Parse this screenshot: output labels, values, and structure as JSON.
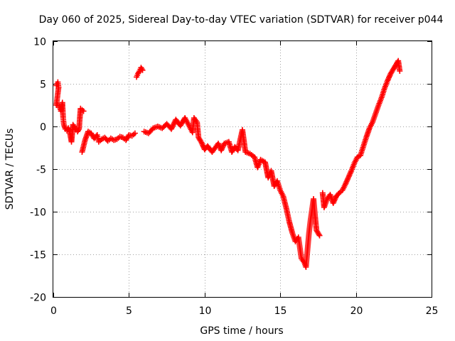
{
  "chart_data": {
    "type": "scatter",
    "title": "Day 060 of 2025, Sidereal Day-to-day VTEC variation (SDTVAR) for receiver p044",
    "xlabel": "GPS time / hours",
    "ylabel": "SDTVAR / TECUs",
    "xlim": [
      0,
      25
    ],
    "ylim": [
      -20,
      10
    ],
    "xticks": [
      0,
      5,
      10,
      15,
      20,
      25
    ],
    "yticks": [
      -20,
      -15,
      -10,
      -5,
      0,
      5,
      10
    ],
    "grid": true,
    "marker": "plus",
    "colors": {
      "series": "#ff0000",
      "axes": "#000000",
      "grid": "#a0a0a0"
    },
    "series": [
      {
        "values": [
          [
            0.2,
            4.8
          ],
          [
            0.3,
            5.2
          ],
          [
            0.35,
            4.6
          ],
          [
            0.2,
            2.5
          ],
          [
            0.4,
            2.4
          ],
          [
            0.5,
            1.8
          ],
          [
            0.6,
            2.8
          ],
          [
            0.65,
            1.0
          ],
          [
            0.7,
            0.2
          ],
          [
            0.8,
            -0.3
          ],
          [
            0.9,
            -0.5
          ],
          [
            1.0,
            -0.2
          ],
          [
            1.1,
            -0.8
          ],
          [
            1.2,
            -1.8
          ],
          [
            1.3,
            0.2
          ],
          [
            1.5,
            -0.4
          ],
          [
            1.6,
            -0.6
          ],
          [
            1.7,
            -0.3
          ],
          [
            1.8,
            2.1
          ],
          [
            2.0,
            1.8
          ],
          [
            1.9,
            -3.0
          ],
          [
            2.1,
            -1.6
          ],
          [
            2.3,
            -0.6
          ],
          [
            2.5,
            -0.8
          ],
          [
            2.7,
            -1.4
          ],
          [
            2.9,
            -1.0
          ],
          [
            3.0,
            -1.8
          ],
          [
            3.2,
            -1.5
          ],
          [
            3.4,
            -1.3
          ],
          [
            3.6,
            -1.7
          ],
          [
            3.8,
            -1.4
          ],
          [
            4.0,
            -1.6
          ],
          [
            4.2,
            -1.5
          ],
          [
            4.4,
            -1.2
          ],
          [
            4.6,
            -1.3
          ],
          [
            4.8,
            -1.6
          ],
          [
            5.0,
            -1.0
          ],
          [
            5.2,
            -1.1
          ],
          [
            5.4,
            -0.8
          ],
          [
            5.5,
            5.8
          ],
          [
            5.6,
            6.2
          ],
          [
            5.7,
            6.5
          ],
          [
            5.8,
            6.9
          ],
          [
            5.9,
            6.6
          ],
          [
            6.0,
            -0.6
          ],
          [
            6.3,
            -0.8
          ],
          [
            6.6,
            -0.2
          ],
          [
            6.9,
            0.0
          ],
          [
            7.2,
            -0.2
          ],
          [
            7.5,
            0.3
          ],
          [
            7.8,
            -0.3
          ],
          [
            8.1,
            0.8
          ],
          [
            8.4,
            0.1
          ],
          [
            8.7,
            1.0
          ],
          [
            9.0,
            0.0
          ],
          [
            9.2,
            -0.7
          ],
          [
            9.3,
            1.0
          ],
          [
            9.5,
            0.5
          ],
          [
            9.6,
            -1.3
          ],
          [
            9.8,
            -1.9
          ],
          [
            10.0,
            -2.7
          ],
          [
            10.2,
            -2.3
          ],
          [
            10.5,
            -3.0
          ],
          [
            10.7,
            -2.5
          ],
          [
            10.9,
            -2.0
          ],
          [
            11.1,
            -2.8
          ],
          [
            11.3,
            -2.0
          ],
          [
            11.6,
            -1.8
          ],
          [
            11.8,
            -3.0
          ],
          [
            12.0,
            -2.4
          ],
          [
            12.2,
            -2.8
          ],
          [
            12.5,
            -0.4
          ],
          [
            12.7,
            -3.0
          ],
          [
            13.0,
            -3.2
          ],
          [
            13.3,
            -3.6
          ],
          [
            13.5,
            -4.8
          ],
          [
            13.7,
            -3.9
          ],
          [
            14.0,
            -4.2
          ],
          [
            14.2,
            -6.0
          ],
          [
            14.4,
            -5.2
          ],
          [
            14.6,
            -7.0
          ],
          [
            14.8,
            -6.4
          ],
          [
            15.0,
            -7.5
          ],
          [
            15.2,
            -8.2
          ],
          [
            15.4,
            -9.6
          ],
          [
            15.6,
            -11.2
          ],
          [
            15.8,
            -12.5
          ],
          [
            16.0,
            -13.5
          ],
          [
            16.2,
            -13.0
          ],
          [
            16.4,
            -15.5
          ],
          [
            16.6,
            -16.0
          ],
          [
            16.7,
            -16.5
          ],
          [
            16.8,
            -14.5
          ],
          [
            16.9,
            -12.5
          ],
          [
            17.0,
            -11.0
          ],
          [
            17.2,
            -8.5
          ],
          [
            17.3,
            -10.5
          ],
          [
            17.4,
            -12.2
          ],
          [
            17.6,
            -12.8
          ],
          [
            17.8,
            -7.8
          ],
          [
            17.9,
            -9.5
          ],
          [
            18.1,
            -8.5
          ],
          [
            18.3,
            -8.0
          ],
          [
            18.5,
            -9.0
          ],
          [
            18.7,
            -8.2
          ],
          [
            18.9,
            -7.8
          ],
          [
            19.1,
            -7.5
          ],
          [
            19.3,
            -6.8
          ],
          [
            19.5,
            -6.0
          ],
          [
            19.7,
            -5.2
          ],
          [
            19.9,
            -4.3
          ],
          [
            20.1,
            -3.6
          ],
          [
            20.3,
            -3.4
          ],
          [
            20.5,
            -2.3
          ],
          [
            20.7,
            -1.2
          ],
          [
            20.9,
            -0.2
          ],
          [
            21.1,
            0.5
          ],
          [
            21.3,
            1.5
          ],
          [
            21.5,
            2.5
          ],
          [
            21.7,
            3.4
          ],
          [
            21.9,
            4.5
          ],
          [
            22.1,
            5.4
          ],
          [
            22.3,
            6.2
          ],
          [
            22.5,
            6.8
          ],
          [
            22.8,
            7.7
          ],
          [
            22.9,
            6.5
          ]
        ]
      }
    ]
  }
}
